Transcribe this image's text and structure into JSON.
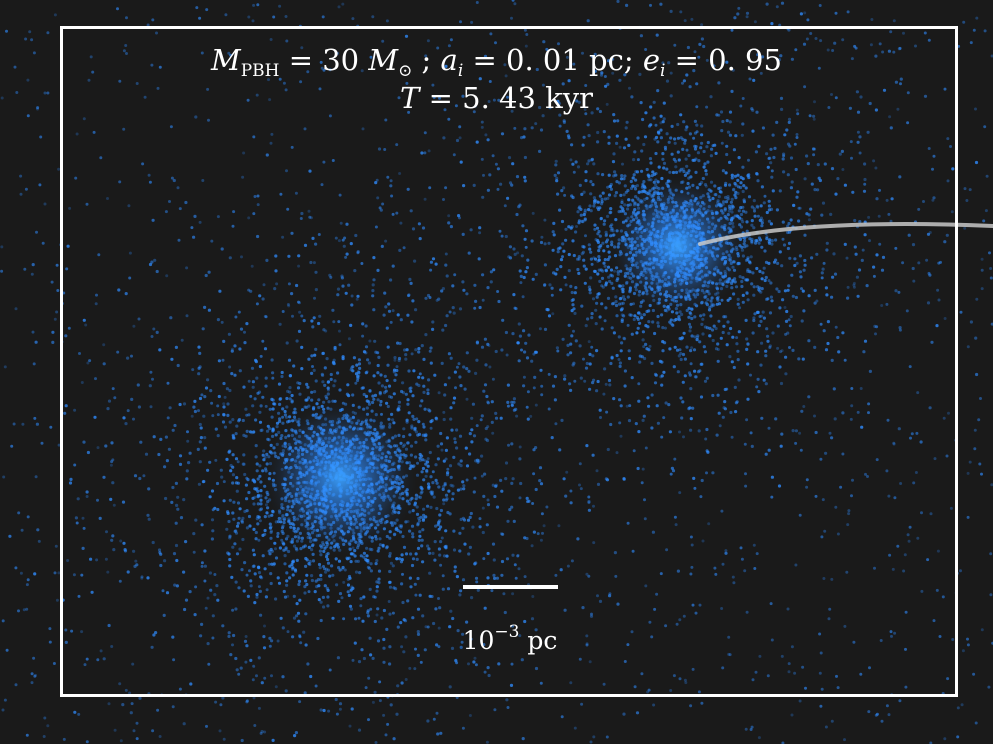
{
  "caption": {
    "mass_symbol": "M",
    "mass_subscript": "PBH",
    "mass_value": " = 30 ",
    "mass_unit_symbol": "M",
    "mass_unit_subscript": "⊙",
    "sep1": " ; ",
    "a_symbol": "a",
    "a_subscript": "i",
    "a_value": " = 0. 01 pc; ",
    "e_symbol": "e",
    "e_subscript": "i",
    "e_value": " = 0. 95",
    "time_symbol": "T",
    "time_value": " = 5. 43 kyr"
  },
  "scale_bar": {
    "base": "10",
    "exponent": "−3",
    "unit": " pc"
  },
  "colors": {
    "background": "#1a1a1a",
    "particles": "#2f8cff",
    "trail": "#c8c8c8",
    "frame": "#ffffff"
  }
}
